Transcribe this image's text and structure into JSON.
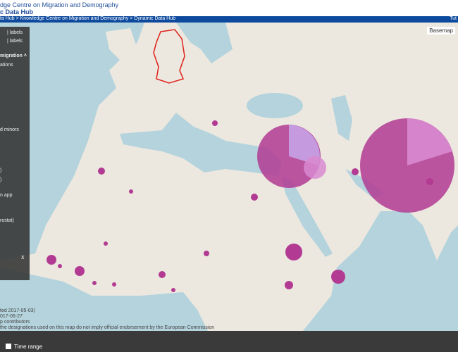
{
  "header": {
    "title": "dge Centre on Migration and Demography",
    "subtitle": "c Data Hub"
  },
  "breadcrumb": {
    "path": "ta Hub > Knowledge Centre on Migration and Demography > Dynamic Data Hub",
    "right": "Tut"
  },
  "map": {
    "basemap": "Basemap"
  },
  "left_panel": {
    "items": [
      "| labels",
      "| labels",
      "migration ˄",
      "ations",
      "d minors",
      ")",
      ")",
      "n app",
      "rostat)",
      "x"
    ]
  },
  "footer": {
    "lines": [
      "ted 2017-05-03)",
      "017-06-27",
      "p contributors",
      "the designations used on this map do not imply official endorsement by the European Commission"
    ],
    "time_range": "Time range"
  }
}
